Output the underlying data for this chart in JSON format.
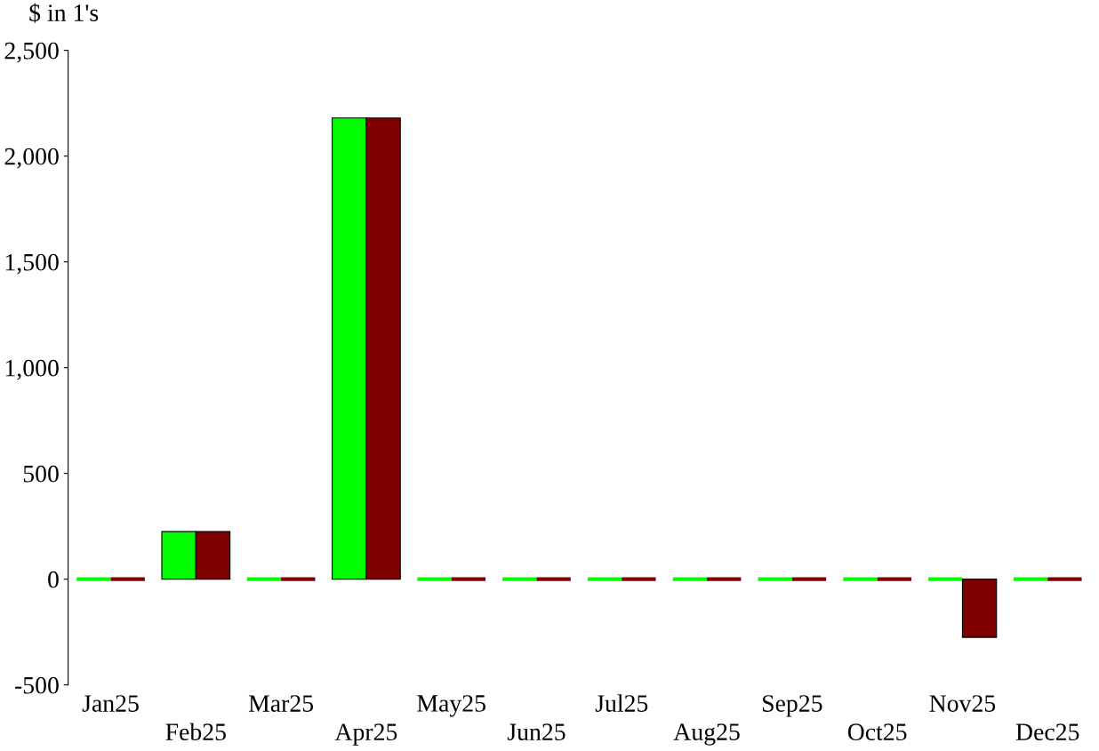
{
  "chart_data": {
    "type": "bar",
    "ylabel": "$ in 1's",
    "categories": [
      "Jan25",
      "Feb25",
      "Mar25",
      "Apr25",
      "May25",
      "Jun25",
      "Jul25",
      "Aug25",
      "Sep25",
      "Oct25",
      "Nov25",
      "Dec25"
    ],
    "series": [
      {
        "color": "#00ff00",
        "values": [
          0,
          225,
          0,
          2180,
          0,
          0,
          0,
          0,
          0,
          0,
          0,
          0
        ]
      },
      {
        "color": "#800000",
        "values": [
          0,
          225,
          0,
          2180,
          0,
          0,
          0,
          0,
          0,
          0,
          -275,
          0
        ]
      }
    ],
    "ylim": [
      -500,
      2500
    ],
    "yticks": [
      {
        "value": -500,
        "label": "-500"
      },
      0,
      500,
      {
        "value": 1000,
        "label": "1,000"
      },
      {
        "value": 1500,
        "label": "1,500"
      },
      {
        "value": 2000,
        "label": "2,000"
      },
      {
        "value": 2500,
        "label": "2,500"
      }
    ],
    "grid": false,
    "legend": false
  }
}
